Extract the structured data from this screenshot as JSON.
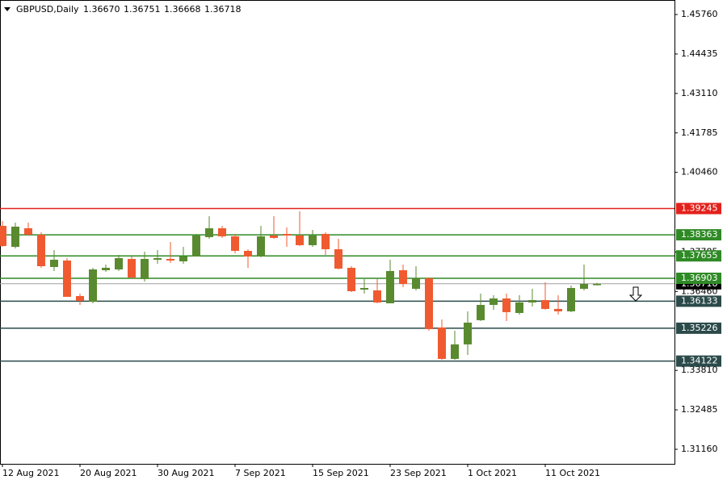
{
  "chart_data": {
    "type": "candlestick",
    "title": "GBPUSD,Daily",
    "quote": [
      "1.36670",
      "1.36751",
      "1.36668",
      "1.36718"
    ],
    "categories": [
      "12 Aug 2021",
      null,
      null,
      null,
      null,
      null,
      "20 Aug 2021",
      null,
      null,
      null,
      null,
      null,
      "30 Aug 2021",
      null,
      null,
      null,
      null,
      null,
      "7 Sep 2021",
      null,
      null,
      null,
      null,
      null,
      "15 Sep 2021",
      null,
      null,
      null,
      null,
      null,
      "23 Sep 2021",
      null,
      null,
      null,
      null,
      null,
      "1 Oct 2021",
      null,
      null,
      null,
      null,
      null,
      "11 Oct 2021",
      null,
      null,
      null,
      null
    ],
    "open": [
      1.38664,
      1.37959,
      1.38583,
      1.38366,
      1.37282,
      1.37499,
      1.36307,
      1.36117,
      1.37173,
      1.372,
      1.37553,
      1.36875,
      1.37526,
      1.37553,
      1.37472,
      1.37634,
      1.38285,
      1.38583,
      1.38312,
      1.37824,
      1.37634,
      1.38339,
      1.38393,
      1.38339,
      1.38014,
      1.38393,
      1.37878,
      1.37255,
      1.36523,
      1.36496,
      1.36063,
      1.37173,
      1.3655,
      1.36902,
      1.35251,
      1.34195,
      1.34683,
      1.35495,
      1.36009,
      1.36225,
      1.35738,
      1.3609,
      1.36171,
      1.35874,
      1.35793,
      1.3655,
      1.3667
    ],
    "high": [
      1.38827,
      1.38772,
      1.38772,
      1.38447,
      1.37851,
      1.3758,
      1.36388,
      1.37255,
      1.37363,
      1.37688,
      1.37634,
      1.37797,
      1.37851,
      1.38122,
      1.37959,
      1.38393,
      1.38989,
      1.38664,
      1.38393,
      1.37878,
      1.38664,
      1.38989,
      1.3861,
      1.39152,
      1.38529,
      1.38447,
      1.3823,
      1.37309,
      1.36875,
      1.36875,
      1.37526,
      1.37363,
      1.37309,
      1.36929,
      1.35522,
      1.35143,
      1.35793,
      1.36388,
      1.36334,
      1.36388,
      1.36334,
      1.3655,
      1.36767,
      1.36334,
      1.36659,
      1.37363,
      1.36751
    ],
    "low": [
      1.37959,
      1.37905,
      1.38339,
      1.37255,
      1.37146,
      1.3628,
      1.36009,
      1.36063,
      1.37119,
      1.37146,
      1.36875,
      1.36794,
      1.3739,
      1.37417,
      1.3739,
      1.37634,
      1.3823,
      1.38258,
      1.37743,
      1.37255,
      1.37607,
      1.3823,
      1.37959,
      1.37987,
      1.37959,
      1.37688,
      1.372,
      1.36442,
      1.36388,
      1.36063,
      1.36063,
      1.36604,
      1.36496,
      1.35143,
      1.34168,
      1.34168,
      1.3433,
      1.35468,
      1.35847,
      1.35468,
      1.35684,
      1.35955,
      1.35847,
      1.35684,
      1.35766,
      1.36496,
      1.36668
    ],
    "close": [
      1.37987,
      1.38637,
      1.38366,
      1.37309,
      1.37526,
      1.3628,
      1.36144,
      1.372,
      1.37255,
      1.3758,
      1.36929,
      1.37553,
      1.3758,
      1.37499,
      1.37634,
      1.38339,
      1.38583,
      1.38312,
      1.37824,
      1.37634,
      1.38312,
      1.38258,
      1.38339,
      1.38014,
      1.38339,
      1.37878,
      1.37228,
      1.36469,
      1.36577,
      1.3609,
      1.37146,
      1.36713,
      1.36902,
      1.35197,
      1.34195,
      1.34683,
      1.35414,
      1.36009,
      1.36225,
      1.35766,
      1.3609,
      1.36171,
      1.35874,
      1.35793,
      1.36577,
      1.36713,
      1.36718
    ],
    "up_color": "#5a8a2f",
    "down_color": "#f05a30",
    "ylim": [
      1.30672,
      1.46248
    ],
    "yticks": [
      {
        "value": 1.4576,
        "label": "1.45760"
      },
      1.44435,
      {
        "value": 1.4311,
        "label": "1.43110"
      },
      1.41785,
      {
        "value": 1.4046,
        "label": "1.40460"
      },
      1.37785,
      {
        "value": 1.3646,
        "label": "1.36460"
      },
      {
        "value": 1.3381,
        "label": "1.33810"
      },
      1.32485,
      {
        "value": 1.3116,
        "label": "1.31160"
      }
    ],
    "levels": [
      {
        "value": 1.39245,
        "color": "#e3211c"
      },
      {
        "value": 1.38363,
        "color": "#2f8a26"
      },
      {
        "value": 1.37655,
        "color": "#2f8a26"
      },
      {
        "value": 1.36903,
        "color": "#2f8a26"
      },
      {
        "value": 1.36133,
        "color": "#2c4a4a"
      },
      {
        "value": 1.35226,
        "color": "#2c4a4a"
      },
      {
        "value": 1.34122,
        "color": "#2c4a4a"
      }
    ],
    "current_price": 1.36718
  }
}
